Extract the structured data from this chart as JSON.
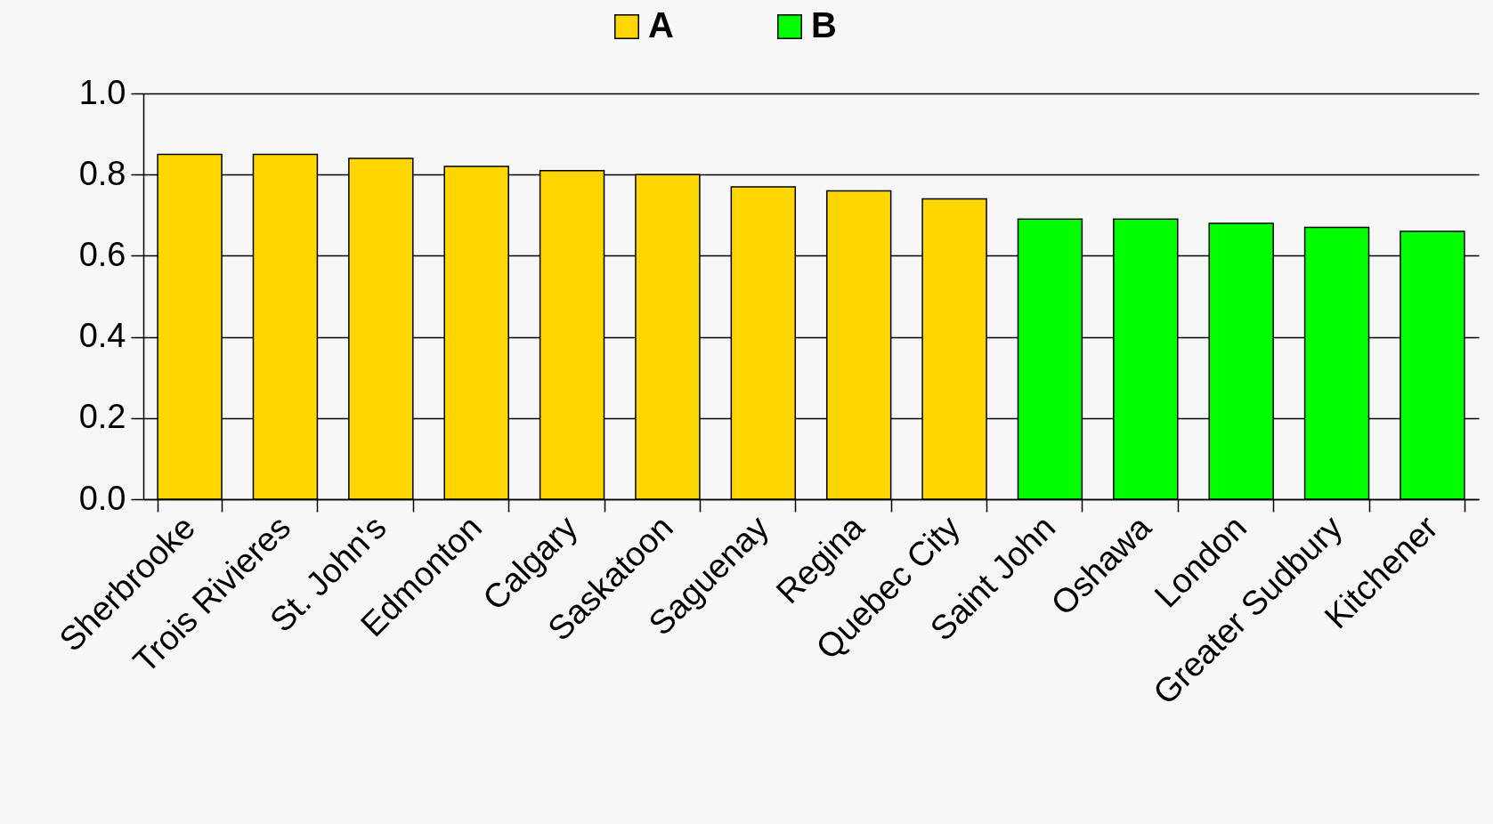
{
  "chart_data": {
    "type": "bar",
    "categories": [
      "Sherbrooke",
      "Trois Rivieres",
      "St. John's",
      "Edmonton",
      "Calgary",
      "Saskatoon",
      "Saguenay",
      "Regina",
      "Quebec City",
      "Saint John",
      "Oshawa",
      "London",
      "Greater Sudbury",
      "Kitchener"
    ],
    "series": [
      {
        "name": "A",
        "color": "#ffd700",
        "values": [
          0.85,
          0.85,
          0.84,
          0.82,
          0.81,
          0.8,
          0.77,
          0.76,
          0.74,
          null,
          null,
          null,
          null,
          null
        ]
      },
      {
        "name": "B",
        "color": "#00ff00",
        "values": [
          null,
          null,
          null,
          null,
          null,
          null,
          null,
          null,
          null,
          0.69,
          0.69,
          0.68,
          0.67,
          0.66
        ]
      }
    ],
    "ylim": [
      0,
      1
    ],
    "yticks": [
      {
        "value": 0,
        "label": "0.0"
      },
      0.2,
      0.4,
      0.6,
      0.8,
      {
        "value": 1,
        "label": "1.0"
      }
    ],
    "grid": "y",
    "legend": "top"
  }
}
